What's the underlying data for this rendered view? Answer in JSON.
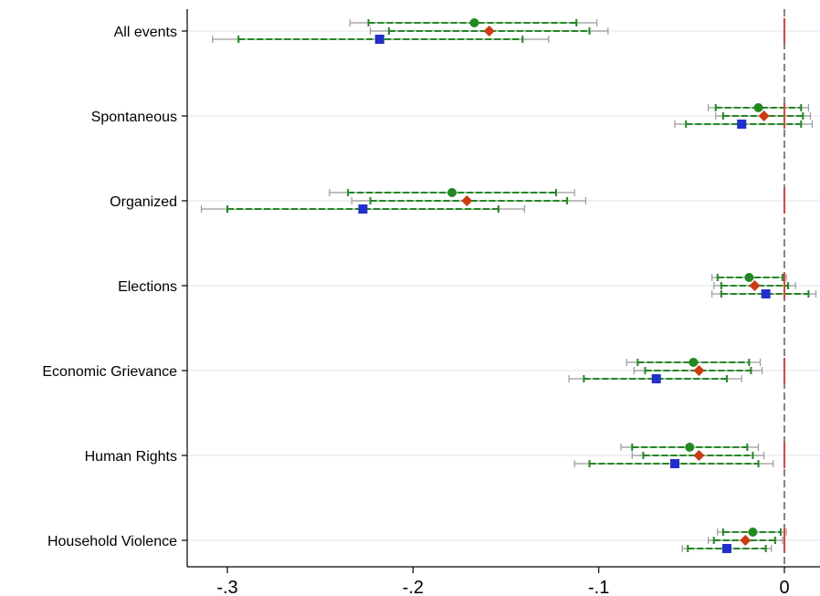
{
  "chart_data": {
    "type": "coefficient-plot",
    "orientation": "horizontal",
    "title": "",
    "xlabel": "",
    "ylabel": "",
    "xlim": [
      -0.32,
      0.02
    ],
    "x_ticks": [
      -0.3,
      -0.2,
      -0.1,
      0
    ],
    "x_tick_labels": [
      "-.3",
      "-.2",
      "-.1",
      "0"
    ],
    "reference_line": {
      "x": 0,
      "style": "dashed",
      "color": "#333333"
    },
    "grid": "horizontal",
    "legend": "none",
    "categories": [
      "All events",
      "Spontaneous",
      "Organized",
      "Elections",
      "Economic Grievance",
      "Human Rights",
      "Household Violence"
    ],
    "series": [
      {
        "marker": "circle",
        "color": "#1f8a1f",
        "estimates": [
          -0.167,
          -0.014,
          -0.179,
          -0.019,
          -0.049,
          -0.051,
          -0.017
        ],
        "ci_inner": [
          [
            -0.224,
            -0.112
          ],
          [
            -0.037,
            0.009
          ],
          [
            -0.235,
            -0.123
          ],
          [
            -0.036,
            -0.001
          ],
          [
            -0.079,
            -0.019
          ],
          [
            -0.082,
            -0.02
          ],
          [
            -0.033,
            -0.002
          ]
        ],
        "ci_outer": [
          [
            -0.234,
            -0.101
          ],
          [
            -0.041,
            0.013
          ],
          [
            -0.245,
            -0.113
          ],
          [
            -0.039,
            0.001
          ],
          [
            -0.085,
            -0.013
          ],
          [
            -0.088,
            -0.014
          ],
          [
            -0.036,
            0.001
          ]
        ]
      },
      {
        "marker": "diamond",
        "color": "#d03a10",
        "estimates": [
          -0.159,
          -0.011,
          -0.171,
          -0.016,
          -0.046,
          -0.046,
          -0.021
        ],
        "ci_inner": [
          [
            -0.213,
            -0.105
          ],
          [
            -0.033,
            0.01
          ],
          [
            -0.223,
            -0.117
          ],
          [
            -0.034,
            0.002
          ],
          [
            -0.075,
            -0.018
          ],
          [
            -0.076,
            -0.017
          ],
          [
            -0.038,
            -0.005
          ]
        ],
        "ci_outer": [
          [
            -0.223,
            -0.095
          ],
          [
            -0.037,
            0.014
          ],
          [
            -0.233,
            -0.107
          ],
          [
            -0.038,
            0.006
          ],
          [
            -0.081,
            -0.012
          ],
          [
            -0.082,
            -0.011
          ],
          [
            -0.041,
            -0.001
          ]
        ]
      },
      {
        "marker": "square",
        "color": "#1f2fd0",
        "estimates": [
          -0.218,
          -0.023,
          -0.227,
          -0.01,
          -0.069,
          -0.059,
          -0.031
        ],
        "ci_inner": [
          [
            -0.294,
            -0.141
          ],
          [
            -0.053,
            0.009
          ],
          [
            -0.3,
            -0.154
          ],
          [
            -0.034,
            0.013
          ],
          [
            -0.108,
            -0.031
          ],
          [
            -0.105,
            -0.014
          ],
          [
            -0.052,
            -0.01
          ]
        ],
        "ci_outer": [
          [
            -0.308,
            -0.127
          ],
          [
            -0.059,
            0.015
          ],
          [
            -0.314,
            -0.14
          ],
          [
            -0.039,
            0.017
          ],
          [
            -0.116,
            -0.023
          ],
          [
            -0.113,
            -0.006
          ],
          [
            -0.055,
            -0.007
          ]
        ]
      }
    ],
    "zero_markers": {
      "color": "#e8403a",
      "shape": "vertical-dash"
    }
  }
}
